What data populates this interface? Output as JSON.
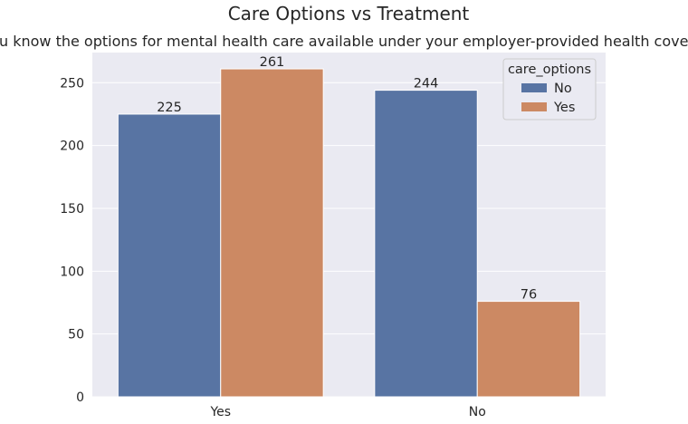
{
  "chart_data": {
    "type": "bar",
    "title": "Care Options vs Treatment",
    "subtitle": "do you know the options for mental health care available under your employer-provided health coverage?",
    "categories": [
      "Yes",
      "No"
    ],
    "series": [
      {
        "name": "No",
        "values": [
          225,
          244
        ],
        "color": "#5874a3"
      },
      {
        "name": "Yes",
        "values": [
          261,
          76
        ],
        "color": "#cc8963"
      }
    ],
    "data_labels": [
      [
        "225",
        "244"
      ],
      [
        "261",
        "76"
      ]
    ],
    "ylim": [
      0,
      274
    ],
    "yticks": [
      0,
      50,
      100,
      150,
      200,
      250
    ],
    "ytick_labels": [
      "0",
      "50",
      "100",
      "150",
      "200",
      "250"
    ],
    "grid": true,
    "legend": {
      "title": "care_options",
      "position": "top-right"
    },
    "colors": {
      "plot_background": "#eaeaf2",
      "grid": "#ffffff",
      "text": "#262626"
    }
  }
}
